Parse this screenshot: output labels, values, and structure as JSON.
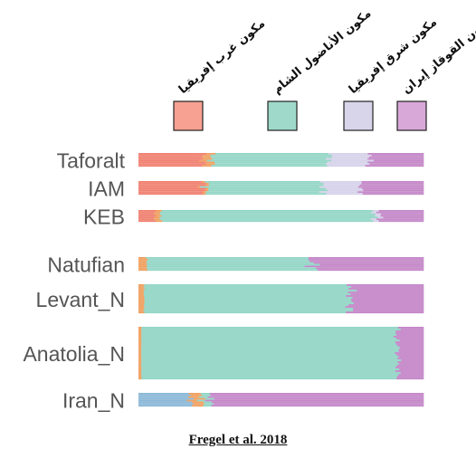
{
  "chart_data": {
    "type": "bar",
    "orientation": "horizontal",
    "stacked": true,
    "normalized": true,
    "legend_placement": "top",
    "legend": [
      {
        "label": "مكون غرب إفريقيا",
        "color": "#f7a193"
      },
      {
        "label": "مكون الأناضول الشام",
        "color": "#9fd9c9"
      },
      {
        "label": "مكون شرق إفريقيا",
        "color": "#d8d4ea"
      },
      {
        "label": "مكون القوقاز إيران",
        "color": "#d8a8d8"
      }
    ],
    "categories": [
      "Taforalt",
      "IAM",
      "KEB",
      "Natufian",
      "Levant_N",
      "Anatolia_N",
      "Iran_N"
    ],
    "component_colors": {
      "west_africa": "#f08070",
      "anatolia_levant": "#93d6c6",
      "east_africa": "#d6d2ea",
      "caucasus_iran": "#c487c8",
      "orange": "#f0a060",
      "blue": "#8ab8d8"
    },
    "series": [
      {
        "group": "Taforalt",
        "west_africa": 0.23,
        "orange": 0.03,
        "anatolia_levant": 0.41,
        "east_africa": 0.14,
        "caucasus_iran": 0.19
      },
      {
        "group": "IAM",
        "west_africa": 0.22,
        "orange": 0.01,
        "anatolia_levant": 0.42,
        "east_africa": 0.13,
        "caucasus_iran": 0.22
      },
      {
        "group": "KEB",
        "west_africa": 0.06,
        "orange": 0.02,
        "anatolia_levant": 0.74,
        "east_africa": 0.02,
        "caucasus_iran": 0.16
      },
      {
        "group": "Natufian",
        "orange": 0.03,
        "anatolia_levant": 0.58,
        "caucasus_iran": 0.39
      },
      {
        "group": "Levant_N",
        "orange": 0.02,
        "anatolia_levant": 0.72,
        "caucasus_iran": 0.26
      },
      {
        "group": "Anatolia_N",
        "orange": 0.01,
        "anatolia_levant": 0.9,
        "caucasus_iran": 0.09
      },
      {
        "group": "Iran_N",
        "blue": 0.19,
        "orange": 0.04,
        "anatolia_levant": 0.03,
        "caucasus_iran": 0.74
      }
    ]
  },
  "source": "Fregel et al. 2018"
}
